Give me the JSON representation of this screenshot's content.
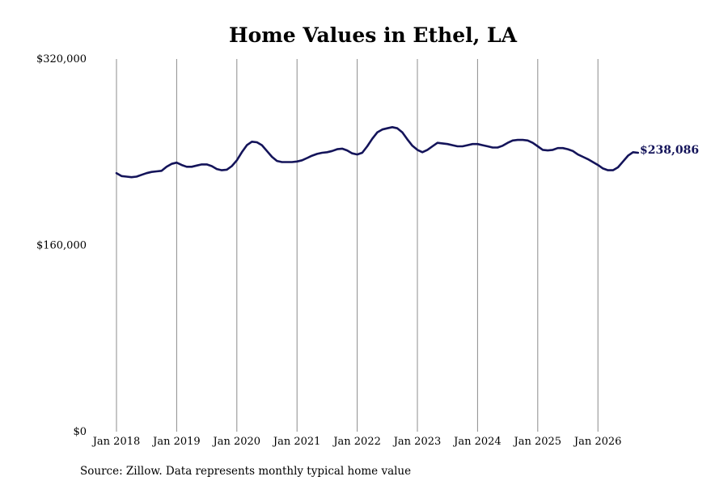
{
  "chart_data": {
    "type": "line",
    "title": "Home Values in Ethel, LA",
    "source": "Source: Zillow. Data represents monthly typical home value",
    "ylim": [
      0,
      320000
    ],
    "yticks": [
      {
        "value": 0,
        "label": "$0"
      },
      {
        "value": 160000,
        "label": "$160,000"
      },
      {
        "value": 320000,
        "label": "$320,000"
      }
    ],
    "xlim": [
      "2018-01",
      "2026-09"
    ],
    "xticks": [
      {
        "x": "2018-01",
        "label": "Jan 2018"
      },
      {
        "x": "2019-01",
        "label": "Jan 2019"
      },
      {
        "x": "2020-01",
        "label": "Jan 2020"
      },
      {
        "x": "2021-01",
        "label": "Jan 2021"
      },
      {
        "x": "2022-01",
        "label": "Jan 2022"
      },
      {
        "x": "2023-01",
        "label": "Jan 2023"
      },
      {
        "x": "2024-01",
        "label": "Jan 2024"
      },
      {
        "x": "2025-01",
        "label": "Jan 2025"
      },
      {
        "x": "2026-01",
        "label": "Jan 2026"
      }
    ],
    "grid": "vertical",
    "line_color": "#14145a",
    "end_label": "$238,086",
    "series": [
      {
        "x": [
          "2018-01",
          "2018-02",
          "2018-03",
          "2018-04",
          "2018-05",
          "2018-06",
          "2018-07",
          "2018-08",
          "2018-09",
          "2018-10",
          "2018-11",
          "2018-12",
          "2019-01",
          "2019-02",
          "2019-03",
          "2019-04",
          "2019-05",
          "2019-06",
          "2019-07",
          "2019-08",
          "2019-09",
          "2019-10",
          "2019-11",
          "2019-12",
          "2020-01",
          "2020-02",
          "2020-03",
          "2020-04",
          "2020-05",
          "2020-06",
          "2020-07",
          "2020-08",
          "2020-09",
          "2020-10",
          "2020-11",
          "2020-12",
          "2021-01",
          "2021-02",
          "2021-03",
          "2021-04",
          "2021-05",
          "2021-06",
          "2021-07",
          "2021-08",
          "2021-09",
          "2021-10",
          "2021-11",
          "2021-12",
          "2022-01",
          "2022-02",
          "2022-03",
          "2022-04",
          "2022-05",
          "2022-06",
          "2022-07",
          "2022-08",
          "2022-09",
          "2022-10",
          "2022-11",
          "2022-12",
          "2023-01",
          "2023-02",
          "2023-03",
          "2023-04",
          "2023-05",
          "2023-06",
          "2023-07",
          "2023-08",
          "2023-09",
          "2023-10",
          "2023-11",
          "2023-12",
          "2024-01",
          "2024-02",
          "2024-03",
          "2024-04",
          "2024-05",
          "2024-06",
          "2024-07",
          "2024-08",
          "2024-09",
          "2024-10",
          "2024-11",
          "2024-12",
          "2025-01",
          "2025-02",
          "2025-03",
          "2025-04",
          "2025-05",
          "2025-06",
          "2025-07",
          "2025-08",
          "2025-09",
          "2025-10",
          "2025-11",
          "2025-12",
          "2026-01",
          "2026-02",
          "2026-03",
          "2026-04",
          "2026-05",
          "2026-06",
          "2026-07",
          "2026-08",
          "2026-09"
        ],
        "values": [
          222000,
          219500,
          219000,
          218500,
          219000,
          220500,
          222000,
          223000,
          223500,
          224000,
          227500,
          230000,
          231000,
          229000,
          227500,
          227500,
          228500,
          229500,
          229500,
          228000,
          225500,
          224500,
          225000,
          228000,
          233000,
          240000,
          246000,
          249000,
          248500,
          246000,
          241000,
          236000,
          232500,
          231500,
          231500,
          231500,
          232000,
          233000,
          235000,
          237000,
          238500,
          239500,
          240000,
          241000,
          242500,
          243000,
          241500,
          239000,
          238000,
          239500,
          245000,
          251500,
          257000,
          259500,
          260500,
          261500,
          260500,
          257000,
          251000,
          245500,
          242000,
          240000,
          242000,
          245000,
          248000,
          247500,
          247000,
          246000,
          245000,
          245000,
          246000,
          247000,
          247000,
          246000,
          245000,
          244000,
          244000,
          245500,
          248000,
          250000,
          250500,
          250500,
          250000,
          248000,
          245000,
          242000,
          241500,
          242000,
          243500,
          243500,
          242500,
          241000,
          238000,
          236000,
          234000,
          231500,
          229000,
          226000,
          224500,
          224500,
          227000,
          232000,
          237000,
          240000,
          239500
        ]
      }
    ]
  }
}
